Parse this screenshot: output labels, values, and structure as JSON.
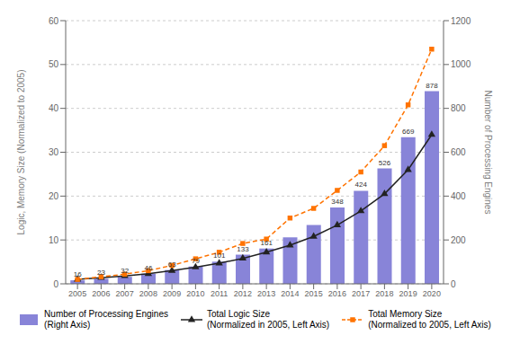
{
  "chart_data": {
    "type": "bar",
    "categories": [
      "2005",
      "2006",
      "2007",
      "2008",
      "2009",
      "2010",
      "2011",
      "2012",
      "2013",
      "2014",
      "2015",
      "2016",
      "2017",
      "2018",
      "2019",
      "2020"
    ],
    "series": [
      {
        "name": "Number of Processing Engines\n(Right Axis)",
        "type": "bar",
        "axis": "y2",
        "values": [
          16,
          23,
          32,
          46,
          63,
          79,
          101,
          133,
          161,
          212,
          268,
          348,
          424,
          526,
          669,
          878
        ],
        "value_labels": [
          "16",
          "23",
          "32",
          "46",
          "63",
          "79",
          "101",
          "133",
          "161",
          null,
          null,
          "348",
          "424",
          "526",
          "669",
          "878"
        ]
      },
      {
        "name": "Total Logic Size\n(Normalized in 2005, Left Axis)",
        "type": "line",
        "marker": "triangle",
        "line_style": "solid",
        "values": [
          1.0,
          1.4,
          1.8,
          2.3,
          3.0,
          3.8,
          4.7,
          5.8,
          7.2,
          8.8,
          10.8,
          13.4,
          16.6,
          20.5,
          26.0,
          34.0
        ]
      },
      {
        "name": "Total Memory Size\n(Normalized to 2005, Left Axis)",
        "type": "line",
        "marker": "square",
        "line_style": "dashed",
        "values": [
          1.0,
          1.6,
          2.2,
          3.0,
          4.2,
          5.7,
          7.2,
          9.2,
          10.2,
          15.0,
          17.2,
          21.3,
          25.5,
          31.5,
          40.8,
          53.5
        ]
      }
    ],
    "ylabel": "Logic, Memory Size (Normalized to 2005)",
    "y2label": "Number of Processing Engines",
    "ylim": [
      0,
      60
    ],
    "yticks": [
      0,
      10,
      20,
      30,
      40,
      50,
      60
    ],
    "y2lim": [
      0,
      1200
    ],
    "y2ticks": [
      0,
      200,
      400,
      600,
      800,
      1000,
      1200
    ],
    "grid": true,
    "data_labels": true,
    "legend": "bottom"
  }
}
